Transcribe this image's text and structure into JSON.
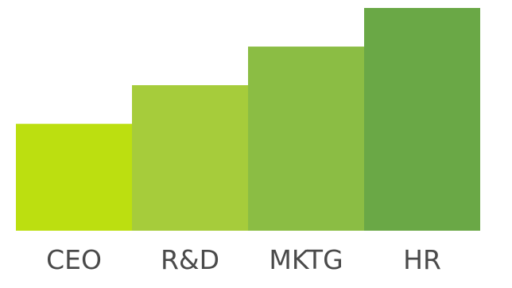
{
  "chart_data": {
    "type": "bar",
    "categories": [
      "CEO",
      "R&D",
      "MKTG",
      "HR"
    ],
    "values": [
      36,
      49,
      62,
      75
    ],
    "colors": [
      "#bcdf10",
      "#a6cc3b",
      "#8bbd44",
      "#6aa846"
    ],
    "ylim": [
      0,
      75
    ],
    "grid": false,
    "legend": "none"
  }
}
